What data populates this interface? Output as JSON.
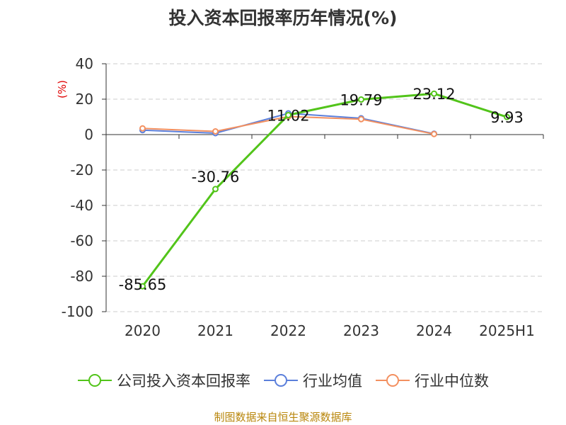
{
  "title": "投入资本回报率历年情况(%)",
  "source": "制图数据来自恒生聚源数据库",
  "chart_data": {
    "type": "line",
    "categories": [
      "2020",
      "2021",
      "2022",
      "2023",
      "2024",
      "2025H1"
    ],
    "ylabel": "(%)",
    "ylim": [
      -100,
      40
    ],
    "yticks": [
      40,
      20,
      0,
      -20,
      -40,
      -60,
      -80,
      -100
    ],
    "grid": true,
    "legend_position": "bottom",
    "series": [
      {
        "name": "公司投入资本回报率",
        "color": "#52c41a",
        "labeled": true,
        "values": [
          -85.65,
          -30.76,
          11.02,
          19.79,
          23.12,
          9.93
        ],
        "labels": [
          "-85.65",
          "-30.76",
          "11.02",
          "19.79",
          "23.12",
          "9.93"
        ]
      },
      {
        "name": "行业均值",
        "color": "#5b7fdb",
        "labeled": false,
        "values": [
          2.5,
          0.8,
          12.0,
          9.2,
          0.5,
          null
        ]
      },
      {
        "name": "行业中位数",
        "color": "#f39060",
        "labeled": false,
        "values": [
          3.5,
          1.8,
          10.2,
          8.7,
          0.3,
          null
        ]
      }
    ]
  }
}
